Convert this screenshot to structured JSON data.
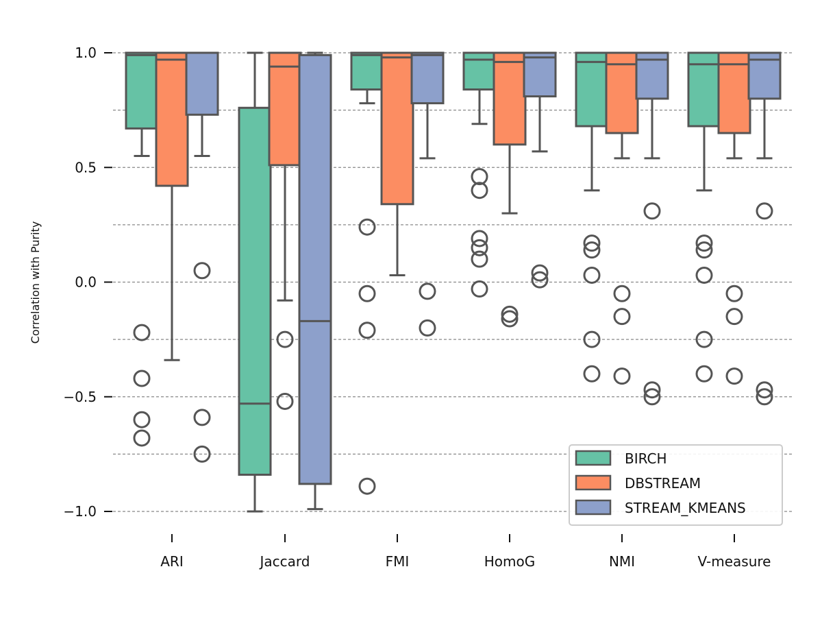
{
  "chart_data": {
    "type": "box",
    "ylabel": "Correlation with Purity",
    "xlabel": "",
    "ylim": [
      -1.05,
      1.05
    ],
    "yticks": [
      1.0,
      0.5,
      0.0,
      -0.5,
      -1.0
    ],
    "ytick_labels": [
      "1.0",
      "0.5",
      "0.0",
      "−0.5",
      "−1.0"
    ],
    "gridlines": [
      1.0,
      0.75,
      0.5,
      0.25,
      0.0,
      -0.25,
      -0.5,
      -0.75,
      -1.0
    ],
    "grid": true,
    "legend_position": "bottom-right",
    "categories": [
      "ARI",
      "Jaccard",
      "FMI",
      "HomoG",
      "NMI",
      "V-measure"
    ],
    "series": [
      {
        "name": "BIRCH",
        "color": "#66c2a5",
        "boxes": [
          {
            "q1": 0.67,
            "median": 0.99,
            "q3": 1.0,
            "whislo": 0.55,
            "whishi": 1.0,
            "fliers": [
              -0.22,
              -0.42,
              -0.6,
              -0.68
            ]
          },
          {
            "q1": -0.84,
            "median": -0.53,
            "q3": 0.76,
            "whislo": -1.0,
            "whishi": 1.0,
            "fliers": []
          },
          {
            "q1": 0.84,
            "median": 0.99,
            "q3": 1.0,
            "whislo": 0.78,
            "whishi": 1.0,
            "fliers": [
              0.24,
              -0.05,
              -0.21,
              -0.89
            ]
          },
          {
            "q1": 0.84,
            "median": 0.97,
            "q3": 1.0,
            "whislo": 0.69,
            "whishi": 1.0,
            "fliers": [
              0.46,
              0.4,
              0.19,
              0.15,
              0.1,
              -0.03
            ]
          },
          {
            "q1": 0.68,
            "median": 0.96,
            "q3": 1.0,
            "whislo": 0.4,
            "whishi": 1.0,
            "fliers": [
              0.17,
              0.14,
              0.03,
              -0.25,
              -0.4
            ]
          },
          {
            "q1": 0.68,
            "median": 0.95,
            "q3": 1.0,
            "whislo": 0.4,
            "whishi": 1.0,
            "fliers": [
              0.17,
              0.14,
              0.03,
              -0.25,
              -0.4
            ]
          }
        ]
      },
      {
        "name": "DBSTREAM",
        "color": "#fc8d62",
        "boxes": [
          {
            "q1": 0.42,
            "median": 0.97,
            "q3": 1.0,
            "whislo": -0.34,
            "whishi": 1.0,
            "fliers": []
          },
          {
            "q1": 0.51,
            "median": 0.94,
            "q3": 1.0,
            "whislo": -0.08,
            "whishi": 1.0,
            "fliers": [
              -0.25,
              -0.52
            ]
          },
          {
            "q1": 0.34,
            "median": 0.98,
            "q3": 1.0,
            "whislo": 0.03,
            "whishi": 1.0,
            "fliers": []
          },
          {
            "q1": 0.6,
            "median": 0.96,
            "q3": 1.0,
            "whislo": 0.3,
            "whishi": 1.0,
            "fliers": [
              -0.14,
              -0.16
            ]
          },
          {
            "q1": 0.65,
            "median": 0.95,
            "q3": 1.0,
            "whislo": 0.54,
            "whishi": 1.0,
            "fliers": [
              -0.05,
              -0.15,
              -0.41
            ]
          },
          {
            "q1": 0.65,
            "median": 0.95,
            "q3": 1.0,
            "whislo": 0.54,
            "whishi": 1.0,
            "fliers": [
              -0.05,
              -0.15,
              -0.41
            ]
          }
        ]
      },
      {
        "name": "STREAM_KMEANS",
        "color": "#8da0cb",
        "boxes": [
          {
            "q1": 0.73,
            "median": 1.0,
            "q3": 1.0,
            "whislo": 0.55,
            "whishi": 1.0,
            "fliers": [
              0.05,
              -0.59,
              -0.75
            ]
          },
          {
            "q1": -0.88,
            "median": -0.17,
            "q3": 0.99,
            "whislo": -0.99,
            "whishi": 1.0,
            "fliers": []
          },
          {
            "q1": 0.78,
            "median": 0.99,
            "q3": 1.0,
            "whislo": 0.54,
            "whishi": 1.0,
            "fliers": [
              -0.04,
              -0.2
            ]
          },
          {
            "q1": 0.81,
            "median": 0.98,
            "q3": 1.0,
            "whislo": 0.57,
            "whishi": 1.0,
            "fliers": [
              0.04,
              0.01
            ]
          },
          {
            "q1": 0.8,
            "median": 0.97,
            "q3": 1.0,
            "whislo": 0.54,
            "whishi": 1.0,
            "fliers": [
              0.31,
              -0.47,
              -0.5
            ]
          },
          {
            "q1": 0.8,
            "median": 0.97,
            "q3": 1.0,
            "whislo": 0.54,
            "whishi": 1.0,
            "fliers": [
              0.31,
              -0.47,
              -0.5
            ]
          }
        ]
      }
    ]
  },
  "colors": {
    "edge": "#555555",
    "grid": "#888888",
    "axis_text": "#111111"
  }
}
